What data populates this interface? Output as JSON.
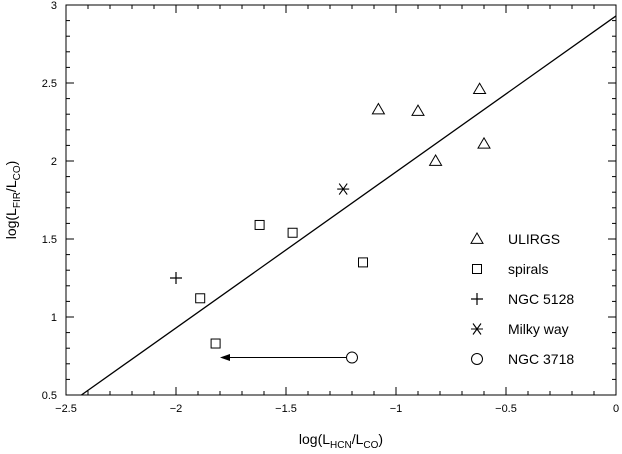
{
  "chart_data": {
    "type": "scatter",
    "xlim": [
      -2.5,
      0
    ],
    "ylim": [
      0.5,
      3
    ],
    "x_ticks": [
      -2.5,
      -2,
      -1.5,
      -1,
      -0.5,
      0
    ],
    "y_ticks": [
      0.5,
      1,
      1.5,
      2,
      2.5,
      3
    ],
    "x_tick_labels": [
      "−2.5",
      "−2",
      "−1.5",
      "−1",
      "−0.5",
      "0"
    ],
    "y_tick_labels": [
      "0.5",
      "1",
      "1.5",
      "2",
      "2.5",
      "3"
    ],
    "xlabel": {
      "main": "log(L",
      "sub1": "HCN",
      "mid": "/L",
      "sub2": "CO",
      "end": ")"
    },
    "ylabel": {
      "main": "log(L",
      "sub1": "FIR",
      "mid": "/L",
      "sub2": "CO",
      "end": ")"
    },
    "grid": false,
    "legend_position": "bottom-right",
    "series": [
      {
        "name": "ULIRGS",
        "marker": "triangle",
        "points": [
          [
            -1.08,
            2.33
          ],
          [
            -0.9,
            2.32
          ],
          [
            -0.62,
            2.46
          ],
          [
            -0.82,
            2.0
          ],
          [
            -0.6,
            2.11
          ]
        ]
      },
      {
        "name": "spirals",
        "marker": "square",
        "points": [
          [
            -1.62,
            1.59
          ],
          [
            -1.47,
            1.54
          ],
          [
            -1.15,
            1.35
          ],
          [
            -1.89,
            1.12
          ],
          [
            -1.82,
            0.83
          ]
        ]
      },
      {
        "name": "NGC 5128",
        "marker": "plus",
        "points": [
          [
            -2.0,
            1.25
          ]
        ]
      },
      {
        "name": "Milky way",
        "marker": "asterisk",
        "points": [
          [
            -1.24,
            1.82
          ]
        ]
      },
      {
        "name": "NGC 3718",
        "marker": "circle",
        "points": [
          [
            -1.2,
            0.74
          ]
        ],
        "upper_limit_arrow_to_x": -1.8
      }
    ],
    "fit_line": {
      "x": [
        -2.43,
        0
      ],
      "y": [
        0.5,
        2.93
      ]
    }
  }
}
